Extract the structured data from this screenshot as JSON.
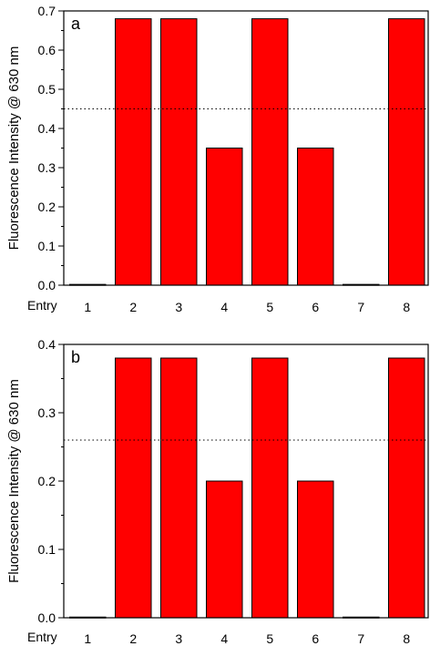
{
  "chart_data": [
    {
      "type": "bar",
      "panel_label": "a",
      "ylabel": "Fluorescence Intensity @ 630 nm",
      "xlabel": "",
      "x_prefix_label": "Entry",
      "categories": [
        "1",
        "2",
        "3",
        "4",
        "5",
        "6",
        "7",
        "8"
      ],
      "values": [
        0.002,
        0.68,
        0.68,
        0.35,
        0.68,
        0.35,
        0.002,
        0.68
      ],
      "ylim": [
        0,
        0.7
      ],
      "yticks": [
        0.0,
        0.1,
        0.2,
        0.3,
        0.4,
        0.5,
        0.6,
        0.7
      ],
      "ytick_labels": [
        "0.0",
        "0.1",
        "0.2",
        "0.3",
        "0.4",
        "0.5",
        "0.6",
        "0.7"
      ],
      "threshold": 0.45,
      "bar_color": "#ff0000",
      "grid": false,
      "legend": "none"
    },
    {
      "type": "bar",
      "panel_label": "b",
      "ylabel": "Fluorescence Intensity @ 630 nm",
      "xlabel": "",
      "x_prefix_label": "Entry",
      "categories": [
        "1",
        "2",
        "3",
        "4",
        "5",
        "6",
        "7",
        "8"
      ],
      "values": [
        0.001,
        0.38,
        0.38,
        0.2,
        0.38,
        0.2,
        0.001,
        0.38
      ],
      "ylim": [
        0,
        0.4
      ],
      "yticks": [
        0.0,
        0.1,
        0.2,
        0.3,
        0.4
      ],
      "ytick_labels": [
        "0.0",
        "0.1",
        "0.2",
        "0.3",
        "0.4"
      ],
      "threshold": 0.26,
      "bar_color": "#ff0000",
      "grid": false,
      "legend": "none"
    }
  ]
}
